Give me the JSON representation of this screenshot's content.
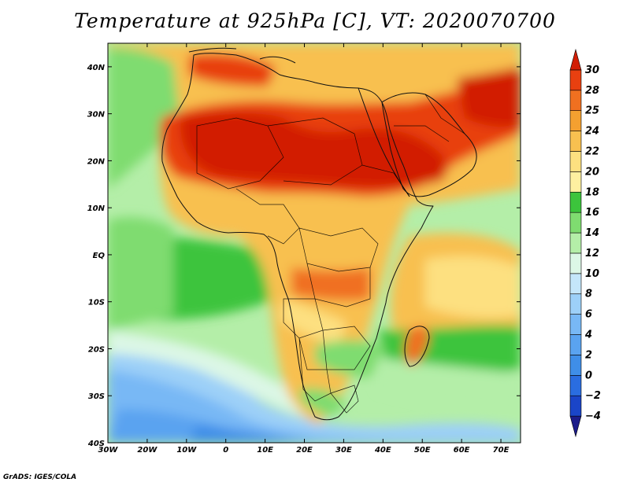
{
  "title": "Temperature at 925hPa [C], VT: 2020070700",
  "credit": "GrADS: IGES/COLA",
  "map": {
    "lon_range": [
      -30,
      75
    ],
    "lat_range": [
      -40,
      45
    ],
    "lon_ticks": [
      {
        "value": -30,
        "label": "30W"
      },
      {
        "value": -20,
        "label": "20W"
      },
      {
        "value": -10,
        "label": "10W"
      },
      {
        "value": 0,
        "label": "0"
      },
      {
        "value": 10,
        "label": "10E"
      },
      {
        "value": 20,
        "label": "20E"
      },
      {
        "value": 30,
        "label": "30E"
      },
      {
        "value": 40,
        "label": "40E"
      },
      {
        "value": 50,
        "label": "50E"
      },
      {
        "value": 60,
        "label": "60E"
      },
      {
        "value": 70,
        "label": "70E"
      }
    ],
    "lat_ticks": [
      {
        "value": -40,
        "label": "40S"
      },
      {
        "value": -30,
        "label": "30S"
      },
      {
        "value": -20,
        "label": "20S"
      },
      {
        "value": -10,
        "label": "10S"
      },
      {
        "value": 0,
        "label": "EQ"
      },
      {
        "value": 10,
        "label": "10N"
      },
      {
        "value": 20,
        "label": "20N"
      },
      {
        "value": 30,
        "label": "30N"
      },
      {
        "value": 40,
        "label": "40N"
      }
    ]
  },
  "colorbar": {
    "levels": [
      "-4",
      "-2",
      "0",
      "2",
      "4",
      "6",
      "8",
      "10",
      "12",
      "14",
      "16",
      "18",
      "20",
      "22",
      "24",
      "25",
      "28",
      "30"
    ],
    "colors": [
      "#1c1c8a",
      "#1a45c8",
      "#2a6de0",
      "#3f8ee8",
      "#5aa3f0",
      "#78b8f5",
      "#9dd0f8",
      "#c4e6fa",
      "#dcf7e6",
      "#b4eea8",
      "#7fdc70",
      "#3cc43c",
      "#fef0a0",
      "#fde080",
      "#f8c050",
      "#f4a030",
      "#f07020",
      "#e84010",
      "#d21e06"
    ]
  },
  "colors": {
    "ocean_cold": "#2a6de0",
    "ocean_cool": "#78b8f5",
    "ocean_mild": "#c4e6fa",
    "ocean_green": "#3cc43c",
    "land_warm": "#f8c050",
    "land_hot": "#e84010",
    "land_hottest": "#d21e06",
    "borders": "#000000"
  }
}
